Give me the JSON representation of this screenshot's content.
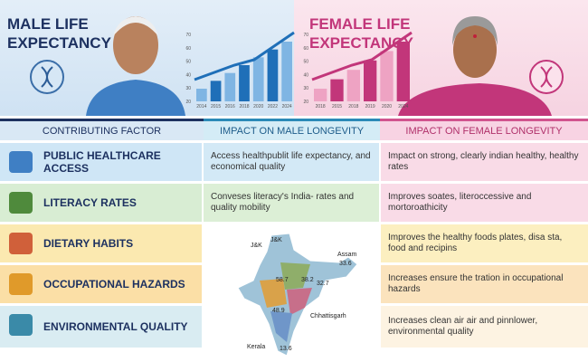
{
  "header": {
    "male": {
      "title": [
        "MALE LIFE",
        "EXPECTANCY"
      ],
      "chart": {
        "yticks": [
          "70",
          "60",
          "50",
          "40",
          "30",
          "20"
        ],
        "xticks": [
          "2014",
          "2015",
          "2016",
          "2018",
          "2020",
          "2022",
          "2024"
        ]
      }
    },
    "female": {
      "title": [
        "FEMALE LIFE",
        "EXPECTANCY"
      ],
      "chart": {
        "yticks": [
          "70",
          "60",
          "50",
          "40",
          "30",
          "20"
        ],
        "xticks": [
          "2018",
          "2015",
          "2018",
          "2019",
          "2020",
          "2024"
        ]
      }
    }
  },
  "table": {
    "header": [
      "CONTRIBUTING FACTOR",
      "IMPACT ON MALE LONGEVITY",
      "IMPACT ON FEMALE LONGEVITY"
    ],
    "rows": [
      {
        "factor": "PUBLIC HEALTHCARE ACCESS",
        "male": "Access healthpublit life expectancy, and economical quality",
        "female": "Impact on strong, clearly indian healthy, healthy rates"
      },
      {
        "factor": "LITERACY RATES",
        "male": "Conveses literacy's India- rates and quality mobility",
        "female": "Improves soates, literoccessive and mortoroathicity"
      },
      {
        "factor": "DIETARY HABITS",
        "female": "Improves the healthy foods plates, disa sta, food and recipins"
      },
      {
        "factor": "OCCUPATIONAL HAZARDS",
        "female": "Increases ensure the tration in occupational hazards"
      },
      {
        "factor": "ENVIRONMENTAL QUALITY",
        "female": "Increases clean air air and pinnlower, environmental quality"
      }
    ]
  },
  "map": {
    "labels": [
      "J&K",
      "J&K",
      "Assam",
      "33.6",
      "58.7",
      "38.2",
      "32.7",
      "48.9",
      "Chhattisgarh",
      "Kerala",
      "13.6"
    ]
  }
}
